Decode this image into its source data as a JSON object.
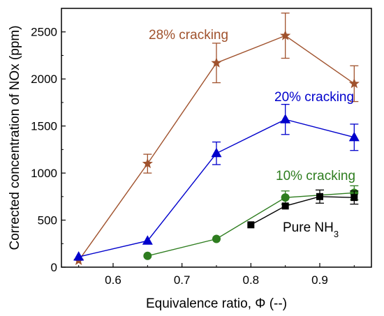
{
  "chart_data": {
    "type": "line",
    "xlabel": "Equivalence ratio, Φ (--)",
    "ylabel": "Corrected concentration of NOx (ppm)",
    "xlim": [
      0.525,
      0.975
    ],
    "ylim": [
      0,
      2750
    ],
    "xticks": [
      0.6,
      0.7,
      0.8,
      0.9
    ],
    "yticks": [
      0,
      500,
      1000,
      1500,
      2000,
      2500
    ],
    "grid": false,
    "series": [
      {
        "name": "28% cracking",
        "color": "#a0522d",
        "marker": "star",
        "x": [
          0.55,
          0.65,
          0.75,
          0.85,
          0.95
        ],
        "y": [
          70,
          1100,
          2170,
          2460,
          1950
        ],
        "err": [
          0,
          100,
          210,
          240,
          190
        ]
      },
      {
        "name": "20% cracking",
        "color": "#0000cc",
        "marker": "triangle",
        "x": [
          0.55,
          0.65,
          0.75,
          0.85,
          0.95
        ],
        "y": [
          110,
          280,
          1210,
          1570,
          1380
        ],
        "err": [
          0,
          0,
          120,
          160,
          140
        ]
      },
      {
        "name": "10% cracking",
        "color": "#2e7d1f",
        "marker": "circle",
        "x": [
          0.65,
          0.75,
          0.85,
          0.95
        ],
        "y": [
          120,
          300,
          740,
          790
        ],
        "err": [
          0,
          0,
          70,
          75
        ]
      },
      {
        "name": "Pure NH",
        "name_sub": "3",
        "color": "#000000",
        "marker": "square",
        "x": [
          0.8,
          0.85,
          0.9,
          0.95
        ],
        "y": [
          450,
          650,
          750,
          740
        ],
        "err": [
          0,
          0,
          70,
          70
        ]
      }
    ]
  }
}
